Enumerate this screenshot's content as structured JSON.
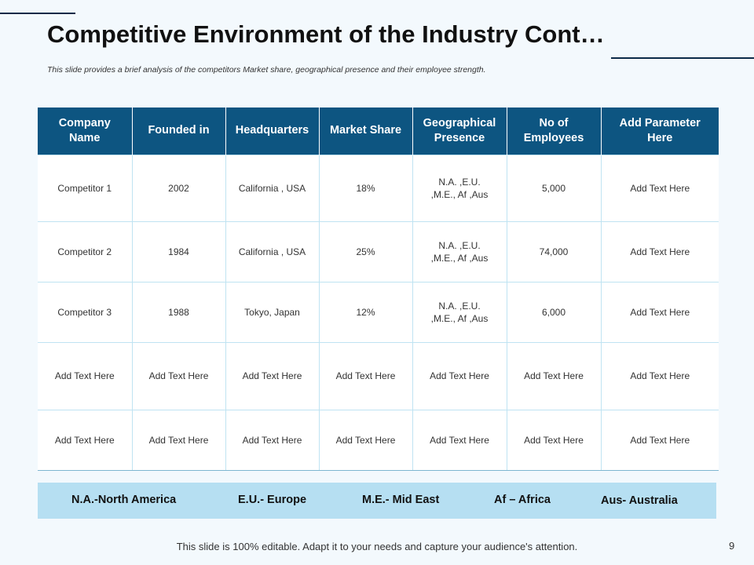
{
  "title": "Competitive Environment of the Industry Cont…",
  "subtitle": "This slide provides a brief analysis of the competitors Market share, geographical presence and their employee strength.",
  "table": {
    "headers": [
      "Company Name",
      "Founded in",
      "Headquarters",
      "Market Share",
      "Geographical Presence",
      "No of Employees",
      "Add Parameter Here"
    ],
    "rows": [
      [
        "Competitor 1",
        "2002",
        "California , USA",
        "18%",
        "N.A. ,E.U. ,M.E., Af ,Aus",
        "5,000",
        "Add Text Here"
      ],
      [
        "Competitor 2",
        "1984",
        "California , USA",
        "25%",
        "N.A. ,E.U. ,M.E., Af ,Aus",
        "74,000",
        "Add Text Here"
      ],
      [
        "Competitor 3",
        "1988",
        "Tokyo, Japan",
        "12%",
        "N.A. ,E.U. ,M.E., Af ,Aus",
        "6,000",
        "Add Text Here"
      ],
      [
        "Add Text Here",
        "Add Text Here",
        "Add Text Here",
        "Add Text Here",
        "Add Text Here",
        "Add Text Here",
        "Add Text Here"
      ],
      [
        "Add Text Here",
        "Add Text Here",
        "Add Text Here",
        "Add Text Here",
        "Add Text Here",
        "Add Text Here",
        "Add Text Here"
      ]
    ]
  },
  "legend": {
    "na": "N.A.-North America",
    "eu": "E.U.- Europe",
    "me": "M.E.- Mid East",
    "af": "Af – Africa",
    "aus": "Aus- Australia"
  },
  "footer": "This slide is 100% editable. Adapt it to your needs and capture your audience's attention.",
  "page_number": "9",
  "colors": {
    "header_bg": "#0d5581",
    "legend_bg": "#b6dff2",
    "page_bg": "#f3f9fd"
  }
}
